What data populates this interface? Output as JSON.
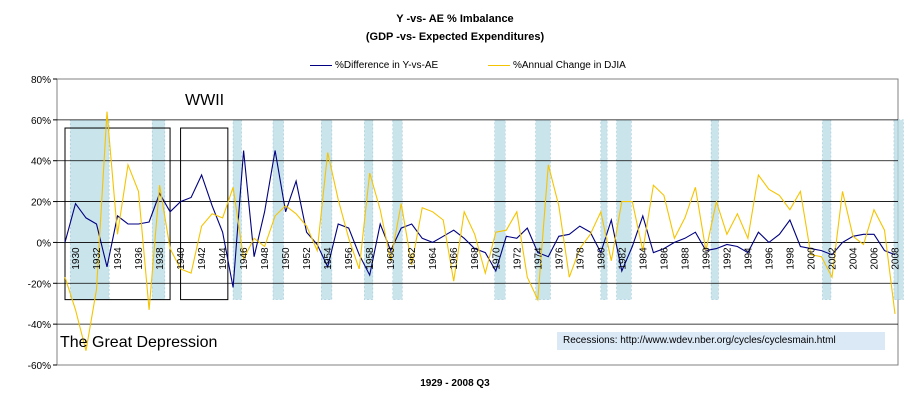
{
  "chart_data": {
    "type": "line",
    "title": "Y -vs- AE   % Imbalance",
    "subtitle": "(GDP  -vs-  Expected Expenditures)",
    "xlabel": "1929 - 2008 Q3",
    "ylim": [
      -60,
      80
    ],
    "yticks": [
      "80%",
      "60%",
      "40%",
      "20%",
      "0%",
      "-20%",
      "-40%",
      "-60%"
    ],
    "grid": true,
    "legend_placement": "top",
    "x": [
      1929,
      1930,
      1931,
      1932,
      1933,
      1934,
      1935,
      1936,
      1937,
      1938,
      1939,
      1940,
      1941,
      1942,
      1943,
      1944,
      1945,
      1946,
      1947,
      1948,
      1949,
      1950,
      1951,
      1952,
      1953,
      1954,
      1955,
      1956,
      1957,
      1958,
      1959,
      1960,
      1961,
      1962,
      1963,
      1964,
      1965,
      1966,
      1967,
      1968,
      1969,
      1970,
      1971,
      1972,
      1973,
      1974,
      1975,
      1976,
      1977,
      1978,
      1979,
      1980,
      1981,
      1982,
      1983,
      1984,
      1985,
      1986,
      1987,
      1988,
      1989,
      1990,
      1991,
      1992,
      1993,
      1994,
      1995,
      1996,
      1997,
      1998,
      1999,
      2000,
      2001,
      2002,
      2003,
      2004,
      2005,
      2006,
      2007,
      2008
    ],
    "xtick_labels": [
      "1930",
      "1932",
      "1934",
      "1936",
      "1938",
      "1940",
      "1942",
      "1944",
      "1946",
      "1948",
      "1950",
      "1952",
      "1954",
      "1956",
      "1958",
      "1960",
      "1962",
      "1964",
      "1966",
      "1968",
      "1970",
      "1972",
      "1974",
      "1976",
      "1978",
      "1980",
      "1982",
      "1984",
      "1986",
      "1988",
      "1990",
      "1992",
      "1994",
      "1996",
      "1998",
      "2000",
      "2002",
      "2004",
      "2006",
      "2008"
    ],
    "series": [
      {
        "name": "%Difference in Y-vs-AE",
        "color": "#000080",
        "values": [
          0,
          19,
          12,
          9,
          -12,
          13,
          9,
          9,
          10,
          24,
          15,
          20,
          22,
          33,
          18,
          5,
          -22,
          45,
          -7,
          15,
          45,
          15,
          30,
          5,
          -1,
          -12,
          9,
          7,
          -6,
          -16,
          9,
          -4,
          7,
          9,
          2,
          0,
          3,
          6,
          2,
          -3,
          -5,
          -14,
          3,
          2,
          7,
          -5,
          -7,
          3,
          4,
          8,
          5,
          -5,
          11,
          -14,
          -2,
          13,
          -5,
          -3,
          0,
          2,
          5,
          -4,
          -3,
          -1,
          -2,
          -5,
          5,
          0,
          4,
          11,
          -2,
          -3,
          -4,
          -6,
          0,
          3,
          4,
          4,
          -4,
          -6
        ]
      },
      {
        "name": "%Annual Change in DJIA",
        "color": "#f5c400",
        "values": [
          -17,
          -33,
          -53,
          -23,
          64,
          4,
          38,
          25,
          -33,
          28,
          -3,
          -13,
          -15,
          8,
          14,
          12,
          27,
          -8,
          2,
          -2,
          13,
          18,
          14,
          8,
          -4,
          44,
          21,
          2,
          -13,
          34,
          16,
          -9,
          19,
          -11,
          17,
          15,
          11,
          -19,
          15,
          4,
          -15,
          5,
          6,
          15,
          -17,
          -28,
          38,
          18,
          -17,
          -3,
          4,
          15,
          -9,
          20,
          20,
          -4,
          28,
          23,
          2,
          12,
          27,
          -4,
          20,
          4,
          14,
          2,
          33,
          26,
          23,
          16,
          25,
          -6,
          -7,
          -17,
          25,
          3,
          -1,
          16,
          6,
          -35
        ]
      }
    ],
    "recession_bands": [
      [
        1929.5,
        1933.2
      ],
      [
        1937.3,
        1938.5
      ],
      [
        1945,
        1945.8
      ],
      [
        1948.8,
        1949.8
      ],
      [
        1953.4,
        1954.4
      ],
      [
        1957.5,
        1958.3
      ],
      [
        1960.2,
        1961.1
      ],
      [
        1969.9,
        1970.9
      ],
      [
        1973.8,
        1975.2
      ],
      [
        1980,
        1980.6
      ],
      [
        1981.5,
        1982.9
      ],
      [
        1990.5,
        1991.2
      ],
      [
        2001.1,
        2001.9
      ],
      [
        2007.9,
        2008.8
      ]
    ],
    "highlight_boxes": [
      [
        1929,
        1939
      ],
      [
        1940,
        1944.5
      ]
    ]
  },
  "annotations": {
    "wwii": "WWII",
    "depression": "The Great Depression",
    "recessions": "Recessions:  http://www.wdev.nber.org/cycles/cyclesmain.html"
  }
}
